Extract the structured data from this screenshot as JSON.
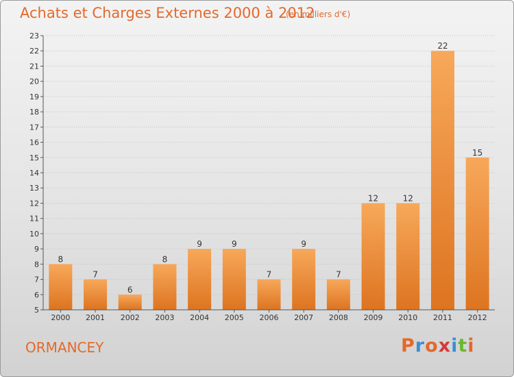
{
  "title": "Achats et Charges Externes 2000 à 2012",
  "subtitle": "(en milliers d'€)",
  "commune": "ORMANCEY",
  "logo": "Proxiti",
  "colors": {
    "title": "#e3692b",
    "bar_light": "#f7a85a",
    "bar_dark": "#e07b26",
    "logo_letters": [
      "#e3692b",
      "#3a8fd6",
      "#e3692b",
      "#d63a3a",
      "#3a8fd6",
      "#6ab82e",
      "#e3692b"
    ]
  },
  "chart_data": {
    "type": "bar",
    "title": "Achats et Charges Externes 2000 à 2012",
    "subtitle": "(en milliers d'€)",
    "categories": [
      "2000",
      "2001",
      "2002",
      "2003",
      "2004",
      "2005",
      "2006",
      "2007",
      "2008",
      "2009",
      "2010",
      "2011",
      "2012"
    ],
    "values": [
      8,
      7,
      6,
      8,
      9,
      9,
      7,
      9,
      7,
      12,
      12,
      22,
      15
    ],
    "ylim": [
      5,
      23
    ],
    "yticks": [
      5,
      6,
      7,
      8,
      9,
      10,
      11,
      12,
      13,
      14,
      15,
      16,
      17,
      18,
      19,
      20,
      21,
      22,
      23
    ],
    "grid": true
  }
}
